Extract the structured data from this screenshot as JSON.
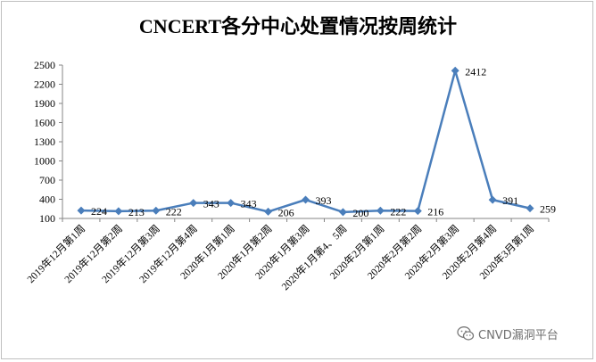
{
  "chart_data": {
    "type": "line",
    "title": "CNCERT各分中心处置情况按周统计",
    "xlabel": "",
    "ylabel": "",
    "ylim": [
      100,
      2500
    ],
    "yticks": [
      100,
      400,
      700,
      1000,
      1300,
      1600,
      1900,
      2200,
      2500
    ],
    "grid": false,
    "legend": "none",
    "categories": [
      "2019年12月第1周",
      "2019年12月第2周",
      "2019年12月第3周",
      "2019年12月第4周",
      "2020年1月第1周",
      "2020年1月第2周",
      "2020年1月第3周",
      "2020年1月第4、5周",
      "2020年2月第1周",
      "2020年2月第2周",
      "2020年2月第3周",
      "2020年2月第4周",
      "2020年3月第1周"
    ],
    "series": [
      {
        "values": [
          224,
          213,
          222,
          343,
          343,
          206,
          393,
          200,
          222,
          216,
          2412,
          391,
          259
        ]
      }
    ],
    "colors": {
      "line": "#4a7ebb",
      "marker": "#4a7ebb",
      "axis": "#868686",
      "text": "#000000"
    }
  },
  "watermark": {
    "text": "CNVD漏洞平台",
    "icon": "wechat-icon"
  }
}
